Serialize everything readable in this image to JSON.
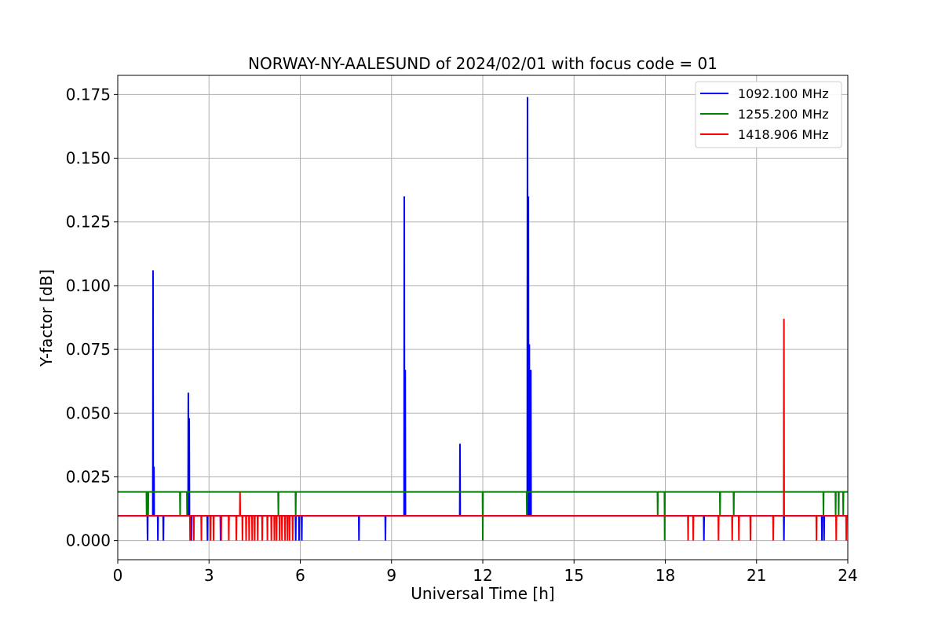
{
  "chart_data": {
    "type": "line",
    "title": "NORWAY-NY-AALESUND of 2024/02/01 with focus code = 01",
    "xlabel": "Universal Time [h]",
    "ylabel": "Y-factor [dB]",
    "xlim": [
      0,
      24
    ],
    "ylim": [
      -0.0075,
      0.1825
    ],
    "xticks": [
      0,
      3,
      6,
      9,
      12,
      15,
      18,
      21,
      24
    ],
    "xtick_labels": [
      "0",
      "3",
      "6",
      "9",
      "12",
      "15",
      "18",
      "21",
      "24"
    ],
    "yticks": [
      0.0,
      0.025,
      0.05,
      0.075,
      0.1,
      0.125,
      0.15,
      0.175
    ],
    "ytick_labels": [
      "0.000",
      "0.025",
      "0.050",
      "0.075",
      "0.100",
      "0.125",
      "0.150",
      "0.175"
    ],
    "grid": true,
    "legend_position": "top-right",
    "series": [
      {
        "name": "1092.100 MHz",
        "color": "#0000ff",
        "baseline": 0.0097,
        "spikes": [
          {
            "x": 0.98,
            "y": 0.0
          },
          {
            "x": 1.16,
            "y": 0.106
          },
          {
            "x": 1.19,
            "y": 0.029
          },
          {
            "x": 1.32,
            "y": 0.0
          },
          {
            "x": 1.5,
            "y": 0.0
          },
          {
            "x": 2.32,
            "y": 0.058
          },
          {
            "x": 2.35,
            "y": 0.048
          },
          {
            "x": 2.42,
            "y": 0.0
          },
          {
            "x": 2.95,
            "y": 0.0
          },
          {
            "x": 3.38,
            "y": 0.0
          },
          {
            "x": 5.85,
            "y": 0.0
          },
          {
            "x": 5.96,
            "y": 0.0
          },
          {
            "x": 6.05,
            "y": 0.0
          },
          {
            "x": 7.93,
            "y": 0.0
          },
          {
            "x": 8.8,
            "y": 0.0
          },
          {
            "x": 9.42,
            "y": 0.135
          },
          {
            "x": 9.45,
            "y": 0.067
          },
          {
            "x": 11.25,
            "y": 0.038
          },
          {
            "x": 13.47,
            "y": 0.174
          },
          {
            "x": 13.5,
            "y": 0.135
          },
          {
            "x": 13.53,
            "y": 0.077
          },
          {
            "x": 13.58,
            "y": 0.067
          },
          {
            "x": 19.27,
            "y": 0.0
          },
          {
            "x": 21.9,
            "y": 0.0
          },
          {
            "x": 23.15,
            "y": 0.0
          },
          {
            "x": 23.22,
            "y": 0.0
          }
        ]
      },
      {
        "name": "1255.200 MHz",
        "color": "#008000",
        "baseline": 0.0191,
        "spikes": [
          {
            "x": 0.95,
            "y": 0.0097
          },
          {
            "x": 1.0,
            "y": 0.0097
          },
          {
            "x": 2.05,
            "y": 0.0097
          },
          {
            "x": 2.28,
            "y": 0.0097
          },
          {
            "x": 5.28,
            "y": 0.0097
          },
          {
            "x": 5.85,
            "y": 0.0097
          },
          {
            "x": 12.0,
            "y": 0.0
          },
          {
            "x": 13.45,
            "y": 0.0097
          },
          {
            "x": 17.75,
            "y": 0.0097
          },
          {
            "x": 17.98,
            "y": 0.0
          },
          {
            "x": 19.8,
            "y": 0.0097
          },
          {
            "x": 20.25,
            "y": 0.0097
          },
          {
            "x": 23.2,
            "y": 0.0097
          },
          {
            "x": 23.6,
            "y": 0.0097
          },
          {
            "x": 23.7,
            "y": 0.0097
          },
          {
            "x": 23.85,
            "y": 0.0097
          }
        ]
      },
      {
        "name": "1418.906 MHz",
        "color": "#ff0000",
        "baseline": 0.0097,
        "spikes": [
          {
            "x": 2.38,
            "y": 0.0
          },
          {
            "x": 2.5,
            "y": 0.0
          },
          {
            "x": 2.75,
            "y": 0.0
          },
          {
            "x": 3.05,
            "y": 0.0
          },
          {
            "x": 3.15,
            "y": 0.0
          },
          {
            "x": 3.4,
            "y": 0.0
          },
          {
            "x": 3.65,
            "y": 0.0
          },
          {
            "x": 3.9,
            "y": 0.0
          },
          {
            "x": 4.02,
            "y": 0.0191
          },
          {
            "x": 4.1,
            "y": 0.0
          },
          {
            "x": 4.22,
            "y": 0.0
          },
          {
            "x": 4.32,
            "y": 0.0
          },
          {
            "x": 4.42,
            "y": 0.0
          },
          {
            "x": 4.5,
            "y": 0.0
          },
          {
            "x": 4.6,
            "y": 0.0
          },
          {
            "x": 4.75,
            "y": 0.0
          },
          {
            "x": 4.92,
            "y": 0.0
          },
          {
            "x": 5.05,
            "y": 0.0
          },
          {
            "x": 5.15,
            "y": 0.0
          },
          {
            "x": 5.22,
            "y": 0.0
          },
          {
            "x": 5.32,
            "y": 0.0
          },
          {
            "x": 5.4,
            "y": 0.0
          },
          {
            "x": 5.5,
            "y": 0.0
          },
          {
            "x": 5.58,
            "y": 0.0
          },
          {
            "x": 5.65,
            "y": 0.0
          },
          {
            "x": 5.75,
            "y": 0.0
          },
          {
            "x": 18.75,
            "y": 0.0
          },
          {
            "x": 18.92,
            "y": 0.0
          },
          {
            "x": 19.75,
            "y": 0.0
          },
          {
            "x": 20.2,
            "y": 0.0
          },
          {
            "x": 20.42,
            "y": 0.0
          },
          {
            "x": 20.8,
            "y": 0.0
          },
          {
            "x": 21.55,
            "y": 0.0
          },
          {
            "x": 21.9,
            "y": 0.087
          },
          {
            "x": 22.97,
            "y": 0.0
          },
          {
            "x": 23.62,
            "y": 0.0
          },
          {
            "x": 23.95,
            "y": 0.0
          }
        ]
      }
    ]
  }
}
